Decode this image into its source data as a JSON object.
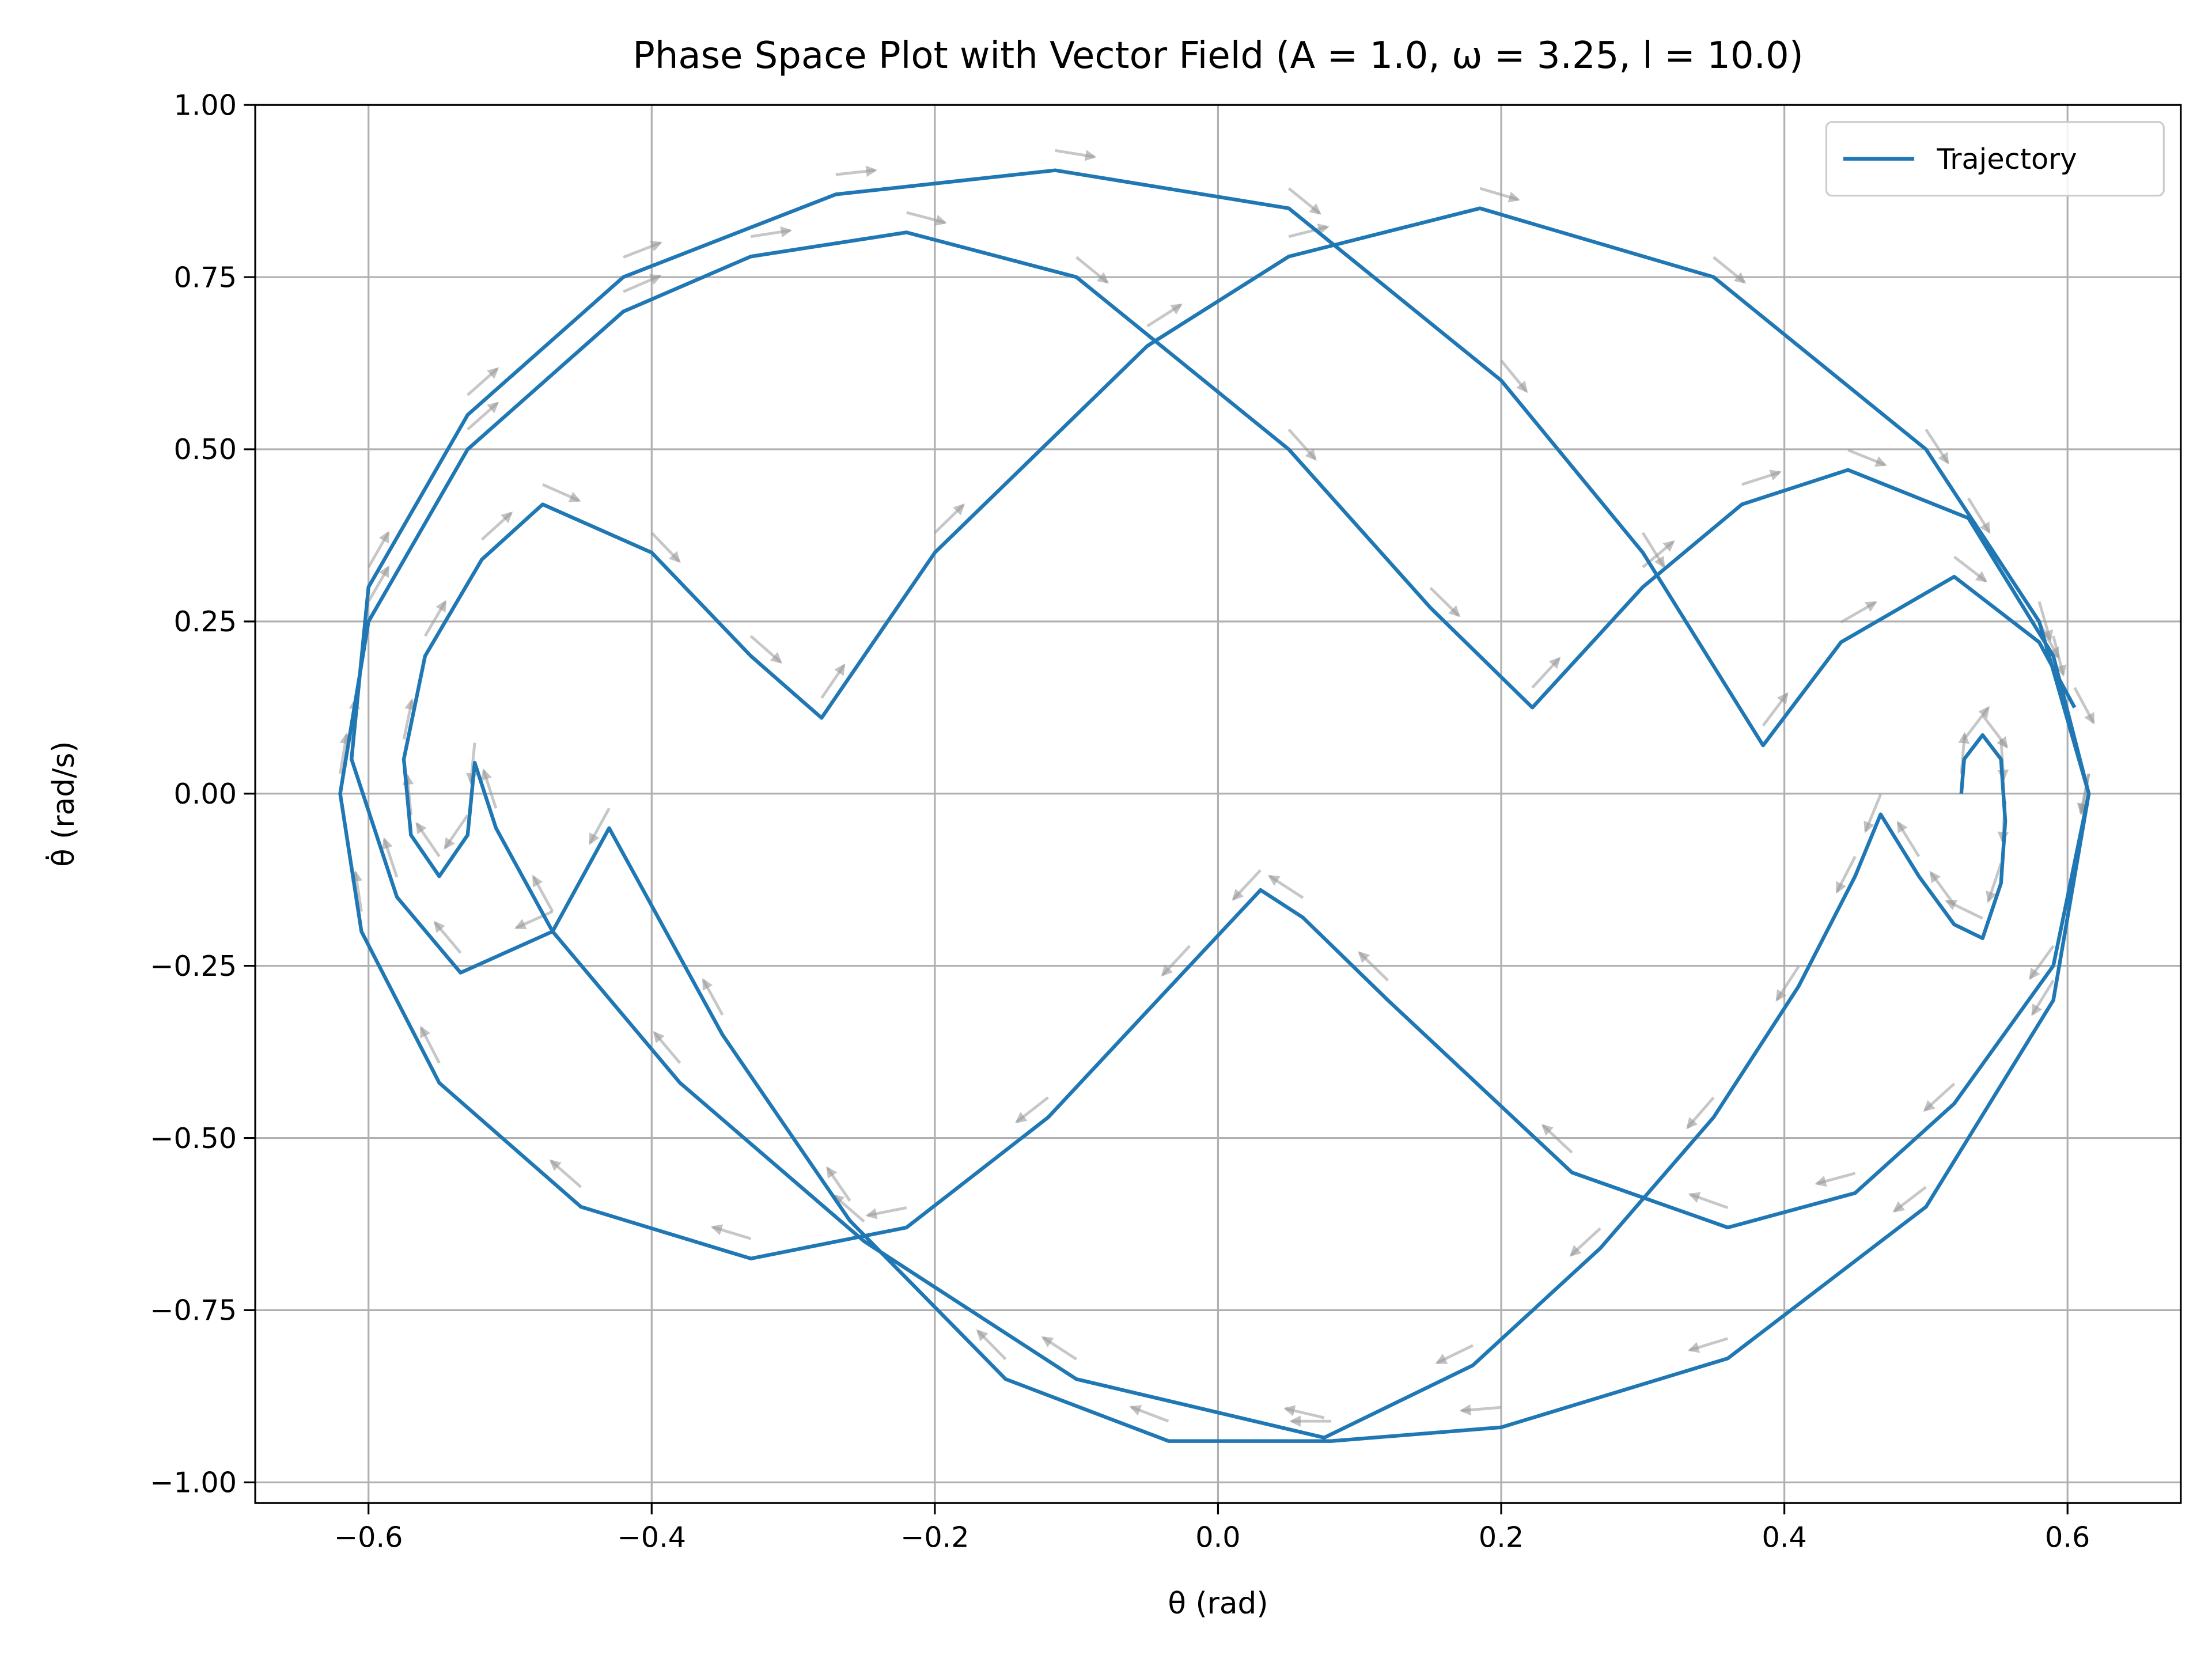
{
  "chart_data": {
    "type": "line",
    "title": "Phase Space Plot with Vector Field (A = 1.0, ω = 3.25, l = 10.0)",
    "x_label": "θ (rad)",
    "y_label": "θ̇ (rad/s)",
    "x": [
      0.525,
      0.527,
      0.54,
      0.553,
      0.556,
      0.553,
      0.54,
      0.52,
      0.495,
      0.468,
      0.45,
      0.41,
      0.35,
      0.27,
      0.18,
      0.075,
      -0.1,
      -0.25,
      -0.38,
      -0.47,
      -0.51,
      -0.525,
      -0.53,
      -0.55,
      -0.57,
      -0.575,
      -0.56,
      -0.52,
      -0.477,
      -0.4,
      -0.33,
      -0.28,
      -0.2,
      -0.05,
      0.05,
      0.185,
      0.35,
      0.5,
      0.58,
      0.615,
      0.59,
      0.52,
      0.45,
      0.36,
      0.25,
      0.12,
      0.06,
      0.03,
      -0.02,
      -0.12,
      -0.22,
      -0.33,
      -0.45,
      -0.55,
      -0.605,
      -0.62,
      -0.6,
      -0.53,
      -0.42,
      -0.33,
      -0.22,
      -0.1,
      0.05,
      0.15,
      0.222,
      0.3,
      0.37,
      0.445,
      0.53,
      0.59,
      0.615,
      0.59,
      0.5,
      0.36,
      0.2,
      0.08,
      -0.035,
      -0.15,
      -0.26,
      -0.35,
      -0.43,
      -0.47,
      -0.535,
      -0.58,
      -0.612,
      -0.6,
      -0.53,
      -0.42,
      -0.27,
      -0.115,
      0.05,
      0.2,
      0.3,
      0.385,
      0.44,
      0.52,
      0.58,
      0.605
    ],
    "series": [
      {
        "name": "Trajectory",
        "color": "#1f77b4",
        "values": [
          0.0,
          0.05,
          0.085,
          0.05,
          -0.04,
          -0.13,
          -0.21,
          -0.19,
          -0.12,
          -0.03,
          -0.12,
          -0.28,
          -0.47,
          -0.66,
          -0.83,
          -0.935,
          -0.85,
          -0.65,
          -0.42,
          -0.2,
          -0.05,
          0.045,
          -0.06,
          -0.12,
          -0.06,
          0.05,
          0.2,
          0.34,
          0.42,
          0.35,
          0.2,
          0.11,
          0.35,
          0.65,
          0.78,
          0.85,
          0.75,
          0.5,
          0.25,
          0.0,
          -0.25,
          -0.45,
          -0.58,
          -0.63,
          -0.55,
          -0.3,
          -0.18,
          -0.14,
          -0.25,
          -0.47,
          -0.63,
          -0.675,
          -0.6,
          -0.42,
          -0.2,
          0.0,
          0.25,
          0.5,
          0.7,
          0.78,
          0.815,
          0.75,
          0.5,
          0.27,
          0.125,
          0.3,
          0.42,
          0.47,
          0.4,
          0.2,
          0.0,
          -0.3,
          -0.6,
          -0.82,
          -0.92,
          -0.94,
          -0.94,
          -0.85,
          -0.62,
          -0.35,
          -0.05,
          -0.2,
          -0.26,
          -0.15,
          0.05,
          0.3,
          0.55,
          0.75,
          0.87,
          0.905,
          0.85,
          0.6,
          0.35,
          0.07,
          0.22,
          0.315,
          0.22,
          0.125
        ]
      }
    ],
    "xlim": [
      -0.68,
      0.68
    ],
    "ylim": [
      -1.03,
      1.0
    ],
    "xticks": [
      {
        "value": -0.6,
        "label": "−0.6"
      },
      {
        "value": -0.4,
        "label": "−0.4"
      },
      {
        "value": -0.2,
        "label": "−0.2"
      },
      {
        "value": 0.0,
        "label": "0.0"
      },
      0.2,
      0.4,
      0.6
    ],
    "yticks": [
      {
        "value": -1.0,
        "label": "−1.00"
      },
      {
        "value": -0.75,
        "label": "−0.75"
      },
      {
        "value": -0.5,
        "label": "−0.50"
      },
      {
        "value": -0.25,
        "label": "−0.25"
      },
      {
        "value": 0.0,
        "label": "0.00"
      },
      {
        "value": 0.25,
        "label": "0.25"
      },
      {
        "value": 0.5,
        "label": "0.50"
      },
      {
        "value": 0.75,
        "label": "0.75"
      },
      {
        "value": 1.0,
        "label": "1.00"
      }
    ],
    "grid": true,
    "legend": "upper right",
    "vector_color": "#999999"
  }
}
